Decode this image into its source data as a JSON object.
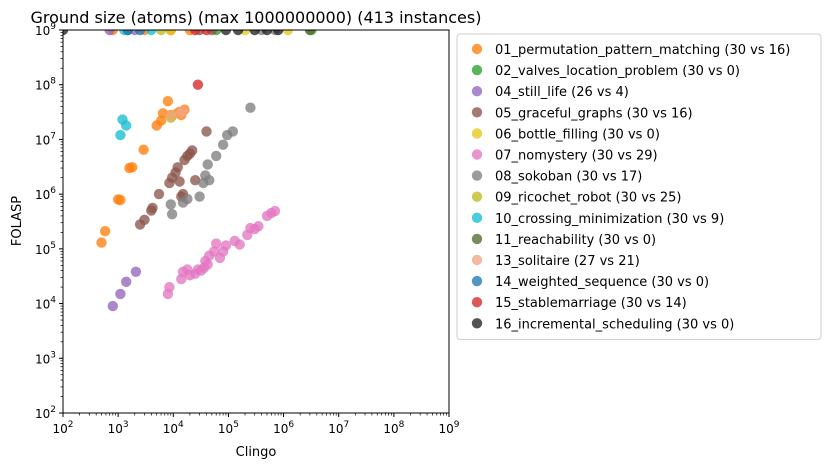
{
  "chart_data": {
    "type": "scatter",
    "title": "Ground size (atoms) (max 1000000000) (413 instances)",
    "xlabel": "Clingo",
    "ylabel": "FOLASP",
    "xscale": "log",
    "yscale": "log",
    "xlim": [
      100,
      1000000000
    ],
    "ylim": [
      100,
      1000000000
    ],
    "x_ticks": [
      {
        "base": "10",
        "exp": "2"
      },
      {
        "base": "10",
        "exp": "3"
      },
      {
        "base": "10",
        "exp": "4"
      },
      {
        "base": "10",
        "exp": "5"
      },
      {
        "base": "10",
        "exp": "6"
      },
      {
        "base": "10",
        "exp": "7"
      },
      {
        "base": "10",
        "exp": "8"
      },
      {
        "base": "10",
        "exp": "9"
      }
    ],
    "y_ticks": [
      {
        "base": "10",
        "exp": "2"
      },
      {
        "base": "10",
        "exp": "3"
      },
      {
        "base": "10",
        "exp": "4"
      },
      {
        "base": "10",
        "exp": "5"
      },
      {
        "base": "10",
        "exp": "6"
      },
      {
        "base": "10",
        "exp": "7"
      },
      {
        "base": "10",
        "exp": "8"
      },
      {
        "base": "10",
        "exp": "9"
      }
    ],
    "legend_position": "outside-right",
    "series": [
      {
        "name": "01_permutation_pattern_matching (30 vs 16)",
        "color": "#ff7f0e",
        "points": [
          [
            500,
            130000
          ],
          [
            580,
            210000
          ],
          [
            1000,
            800000
          ],
          [
            1100,
            780000
          ],
          [
            1600,
            3000000
          ],
          [
            1800,
            3100000
          ],
          [
            2900,
            6500000
          ],
          [
            5000,
            18000000
          ],
          [
            6000,
            22000000
          ],
          [
            6500,
            30000000
          ],
          [
            8000,
            50000000
          ],
          [
            9000,
            28000000
          ],
          [
            12000,
            30000000
          ],
          [
            13000,
            32000000
          ],
          [
            16000,
            35000000
          ],
          [
            14000,
            28000000
          ],
          [
            800,
            1000000000
          ],
          [
            3000,
            1000000000
          ],
          [
            9000,
            1000000000
          ],
          [
            20000,
            1000000000
          ]
        ]
      },
      {
        "name": "02_valves_location_problem (30 vs 0)",
        "color": "#2ca02c",
        "points": [
          [
            3200000,
            1000000000
          ],
          [
            1500,
            1000000000
          ],
          [
            60000,
            1000000000
          ]
        ]
      },
      {
        "name": "04_still_life (26 vs 4)",
        "color": "#9467bd",
        "points": [
          [
            800,
            9000
          ],
          [
            1100,
            15000
          ],
          [
            1400,
            25000
          ],
          [
            2100,
            38000
          ],
          [
            700,
            1000000000
          ],
          [
            2000,
            1000000000
          ]
        ]
      },
      {
        "name": "05_graceful_graphs (30 vs 16)",
        "color": "#8c564b",
        "points": [
          [
            2500,
            280000
          ],
          [
            3000,
            340000
          ],
          [
            4000,
            500000
          ],
          [
            4200,
            560000
          ],
          [
            5500,
            1000000
          ],
          [
            8500,
            1600000
          ],
          [
            9500,
            2000000
          ],
          [
            11000,
            2500000
          ],
          [
            12000,
            3100000
          ],
          [
            13000,
            1700000
          ],
          [
            14000,
            900000
          ],
          [
            15000,
            1000000
          ],
          [
            16000,
            4200000
          ],
          [
            18000,
            5000000
          ],
          [
            20000,
            5500000
          ],
          [
            22000,
            6300000
          ],
          [
            25000,
            1800000
          ],
          [
            40000,
            14000000
          ],
          [
            30000,
            1000000000
          ],
          [
            50000,
            1000000000
          ]
        ]
      },
      {
        "name": "06_bottle_filling (30 vs 0)",
        "color": "#e6c619",
        "points": [
          [
            9000,
            1000000000
          ],
          [
            200000,
            1000000000
          ],
          [
            1200000,
            1000000000
          ]
        ]
      },
      {
        "name": "07_nomystery (30 vs 29)",
        "color": "#e377c2",
        "points": [
          [
            8000,
            15000
          ],
          [
            8500,
            20000
          ],
          [
            14000,
            28000
          ],
          [
            15000,
            38000
          ],
          [
            18000,
            42000
          ],
          [
            20000,
            33000
          ],
          [
            25000,
            35000
          ],
          [
            28000,
            42000
          ],
          [
            32000,
            40000
          ],
          [
            36000,
            45000
          ],
          [
            38000,
            60000
          ],
          [
            42000,
            52000
          ],
          [
            45000,
            75000
          ],
          [
            55000,
            90000
          ],
          [
            60000,
            125000
          ],
          [
            70000,
            68000
          ],
          [
            80000,
            90000
          ],
          [
            90000,
            115000
          ],
          [
            130000,
            140000
          ],
          [
            160000,
            120000
          ],
          [
            220000,
            180000
          ],
          [
            250000,
            240000
          ],
          [
            300000,
            230000
          ],
          [
            350000,
            260000
          ],
          [
            500000,
            400000
          ],
          [
            600000,
            450000
          ],
          [
            700000,
            490000
          ]
        ]
      },
      {
        "name": "08_sokoban (30 vs 17)",
        "color": "#7f7f7f",
        "points": [
          [
            9000,
            650000
          ],
          [
            9500,
            430000
          ],
          [
            15000,
            700000
          ],
          [
            18000,
            820000
          ],
          [
            30000,
            900000
          ],
          [
            35000,
            1600000
          ],
          [
            38000,
            2200000
          ],
          [
            42000,
            3500000
          ],
          [
            45000,
            1800000
          ],
          [
            60000,
            5000000
          ],
          [
            80000,
            8000000
          ],
          [
            95000,
            12000000
          ],
          [
            120000,
            14000000
          ],
          [
            250000,
            38000000
          ],
          [
            400000,
            1000000000
          ],
          [
            700000,
            1000000000
          ]
        ]
      },
      {
        "name": "09_ricochet_robot (30 vs 25)",
        "color": "#bcbd22",
        "points": [
          [
            9000,
            25000000
          ],
          [
            9500,
            27000000
          ],
          [
            6000,
            1000000000
          ]
        ]
      },
      {
        "name": "10_crossing_minimization (30 vs 9)",
        "color": "#17becf",
        "points": [
          [
            1100,
            12000000
          ],
          [
            1200,
            23000000
          ],
          [
            1400,
            18000000
          ],
          [
            1300,
            1000000000
          ],
          [
            4000,
            1000000000
          ]
        ]
      },
      {
        "name": "11_reachability (30 vs 0)",
        "color": "#556b2f",
        "points": [
          [
            3000000,
            1000000000
          ]
        ]
      },
      {
        "name": "13_solitaire (27 vs 21)",
        "color": "#f4a582",
        "points": [
          [
            9000,
            27000000
          ],
          [
            13000,
            30000000
          ],
          [
            15000,
            33000000
          ]
        ]
      },
      {
        "name": "14_weighted_sequence (30 vs 0)",
        "color": "#1f77b4",
        "points": [
          [
            1500,
            1000000000
          ],
          [
            2500,
            1000000000
          ]
        ]
      },
      {
        "name": "15_stablemarriage (30 vs 14)",
        "color": "#d62728",
        "points": [
          [
            28000,
            100000000
          ],
          [
            25000,
            1000000000
          ],
          [
            40000,
            1000000000
          ]
        ]
      },
      {
        "name": "16_incremental_scheduling (30 vs 0)",
        "color": "#222222",
        "points": [
          [
            100,
            1000000000
          ],
          [
            90000,
            1000000000
          ],
          [
            150000,
            1000000000
          ],
          [
            300000,
            1000000000
          ],
          [
            500000,
            1000000000
          ],
          [
            800000,
            1000000000
          ]
        ]
      }
    ]
  }
}
